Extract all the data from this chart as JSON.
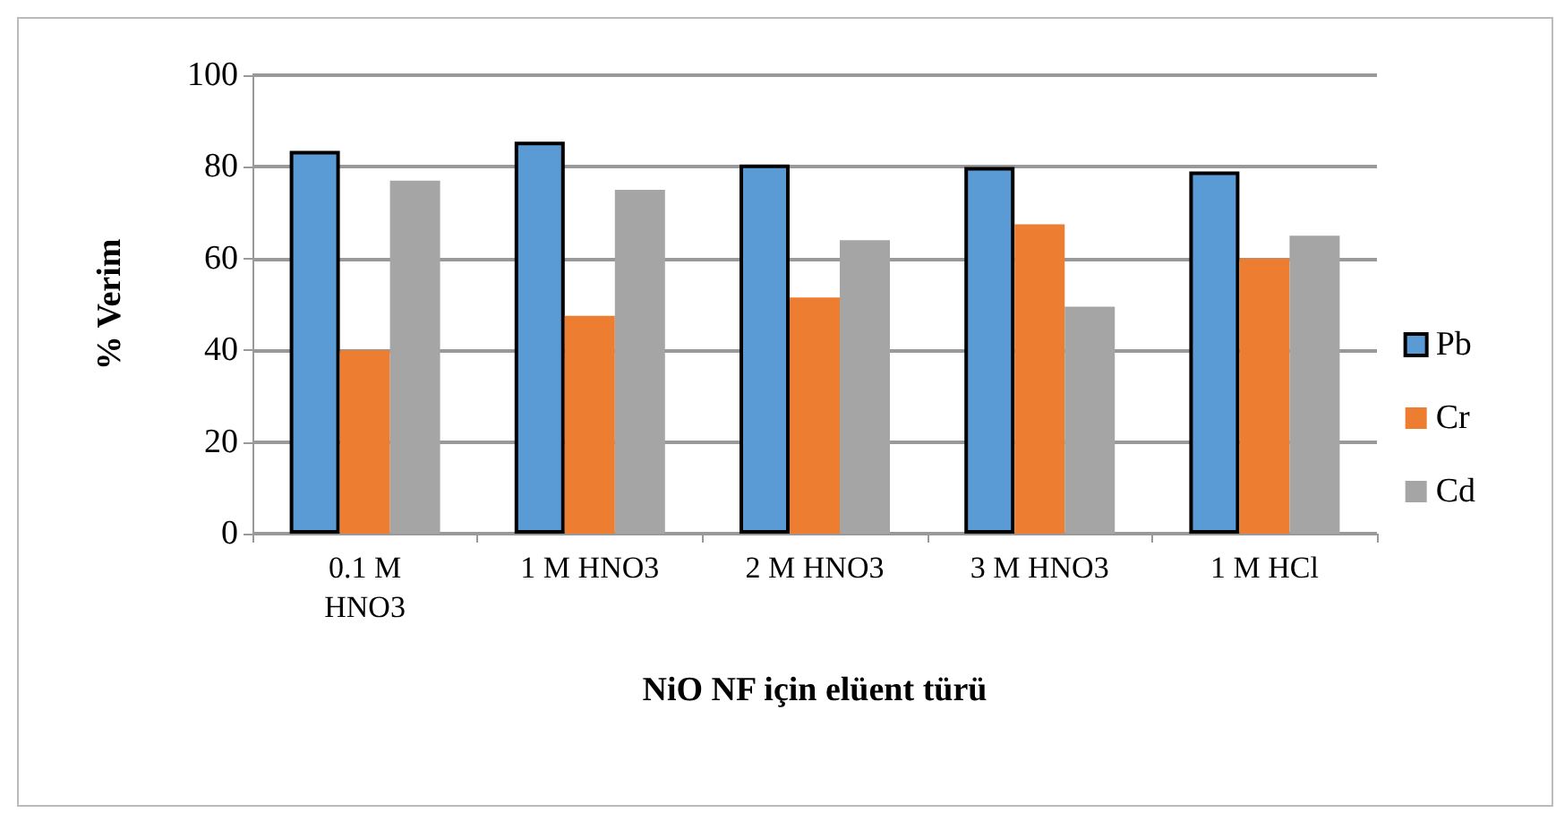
{
  "chart_data": {
    "type": "bar",
    "xlabel": "NiO NF için elüent türü",
    "ylabel": "% Verim",
    "categories": [
      "0.1 M\nHNO3",
      "1 M HNO3",
      "2 M HNO3",
      "3 M HNO3",
      "1 M HCl"
    ],
    "series": [
      {
        "name": "Pb",
        "color": "#5b9bd5",
        "values": [
          83.5,
          85.5,
          80.5,
          80,
          79
        ]
      },
      {
        "name": "Cr",
        "color": "#ed7d31",
        "values": [
          40,
          47.5,
          51.5,
          67.5,
          60
        ]
      },
      {
        "name": "Cd",
        "color": "#a5a5a5",
        "values": [
          77,
          75,
          64,
          49.5,
          65
        ]
      }
    ],
    "ylim": [
      0,
      100
    ],
    "yticks": [
      0,
      20,
      40,
      60,
      80,
      100
    ],
    "grid": "y",
    "legend": "right"
  }
}
